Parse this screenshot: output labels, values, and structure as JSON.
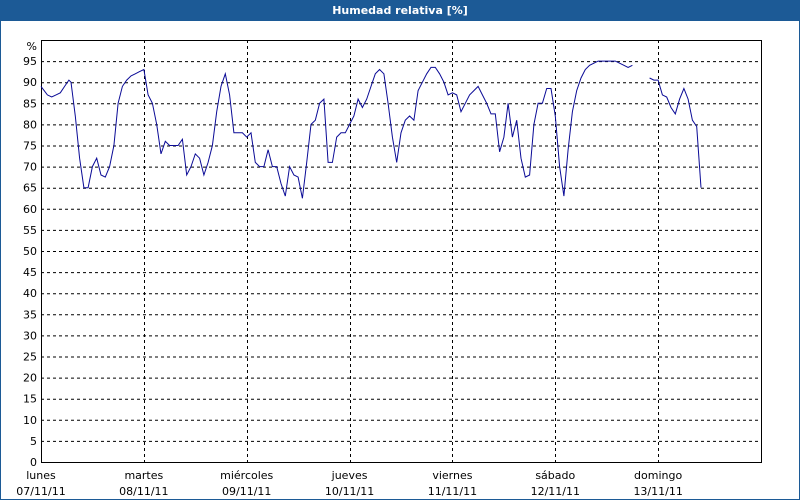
{
  "window": {
    "title": "Humedad relativa [%]"
  },
  "colors": {
    "title_bar": "#1c5a96",
    "line": "#0a0a96",
    "grid": "#000000"
  },
  "chart_data": {
    "type": "line",
    "title": "Humedad relativa [%]",
    "ylabel": "%",
    "ylim": [
      0,
      100
    ],
    "yticks": [
      0,
      5,
      10,
      15,
      20,
      25,
      30,
      35,
      40,
      45,
      50,
      55,
      60,
      65,
      70,
      75,
      80,
      85,
      90,
      95
    ],
    "grid": true,
    "x_unit": "hours since lunes 07/11/11 00:00",
    "xlim": [
      0,
      168
    ],
    "days": [
      {
        "name": "lunes",
        "date": "07/11/11"
      },
      {
        "name": "martes",
        "date": "08/11/11"
      },
      {
        "name": "miércoles",
        "date": "09/11/11"
      },
      {
        "name": "jueves",
        "date": "10/11/11"
      },
      {
        "name": "viernes",
        "date": "11/11/11"
      },
      {
        "name": "sábado",
        "date": "12/11/11"
      },
      {
        "name": "domingo",
        "date": "13/11/11"
      }
    ],
    "series": [
      {
        "values": [
          [
            0,
            89
          ],
          [
            1.5,
            87
          ],
          [
            2.5,
            86.5
          ],
          [
            3.5,
            87
          ],
          [
            4.5,
            87.5
          ],
          [
            5.5,
            89
          ],
          [
            6.5,
            90.5
          ],
          [
            7,
            90
          ],
          [
            8,
            82
          ],
          [
            9,
            72
          ],
          [
            10,
            65
          ],
          [
            11,
            65
          ],
          [
            12,
            70
          ],
          [
            13,
            72
          ],
          [
            14,
            68
          ],
          [
            15,
            67.5
          ],
          [
            16,
            70
          ],
          [
            17,
            75
          ],
          [
            18,
            85
          ],
          [
            19,
            89
          ],
          [
            20,
            90.5
          ],
          [
            21,
            91.5
          ],
          [
            22,
            92
          ],
          [
            23,
            92.5
          ],
          [
            24,
            93
          ],
          [
            25,
            87
          ],
          [
            26,
            85
          ],
          [
            27,
            80
          ],
          [
            28,
            73
          ],
          [
            29,
            76
          ],
          [
            30,
            75
          ],
          [
            31,
            75
          ],
          [
            32,
            75
          ],
          [
            33,
            76.5
          ],
          [
            34,
            68
          ],
          [
            35,
            70
          ],
          [
            36,
            73
          ],
          [
            37,
            72
          ],
          [
            38,
            68
          ],
          [
            39,
            71
          ],
          [
            40,
            75
          ],
          [
            41,
            83
          ],
          [
            42,
            89
          ],
          [
            43,
            92
          ],
          [
            44,
            87
          ],
          [
            45,
            78
          ],
          [
            46,
            78
          ],
          [
            47,
            78
          ],
          [
            48,
            77
          ],
          [
            49,
            78
          ],
          [
            50,
            71
          ],
          [
            51,
            70
          ],
          [
            52,
            70
          ],
          [
            53,
            74
          ],
          [
            54,
            70
          ],
          [
            55,
            70
          ],
          [
            56,
            66
          ],
          [
            57,
            63
          ],
          [
            58,
            70
          ],
          [
            59,
            68
          ],
          [
            60,
            67.5
          ],
          [
            61,
            62.5
          ],
          [
            62,
            71
          ],
          [
            63,
            80
          ],
          [
            64,
            81
          ],
          [
            65,
            85
          ],
          [
            66,
            86
          ],
          [
            67,
            71
          ],
          [
            68,
            71
          ],
          [
            69,
            77
          ],
          [
            70,
            78
          ],
          [
            71,
            78
          ],
          [
            72,
            80
          ],
          [
            73,
            82
          ],
          [
            74,
            86
          ],
          [
            75,
            84
          ],
          [
            76,
            86
          ],
          [
            77,
            89
          ],
          [
            78,
            92
          ],
          [
            79,
            93
          ],
          [
            80,
            92
          ],
          [
            81,
            85
          ],
          [
            82,
            77
          ],
          [
            83,
            71
          ],
          [
            84,
            78
          ],
          [
            85,
            81
          ],
          [
            86,
            82
          ],
          [
            87,
            81
          ],
          [
            88,
            88
          ],
          [
            89,
            90
          ],
          [
            90,
            92
          ],
          [
            91,
            93.5
          ],
          [
            92,
            93.5
          ],
          [
            93,
            92
          ],
          [
            94,
            90
          ],
          [
            95,
            87
          ],
          [
            96,
            87.5
          ],
          [
            97,
            87
          ],
          [
            98,
            83
          ],
          [
            99,
            85
          ],
          [
            100,
            87
          ],
          [
            101,
            88
          ],
          [
            102,
            89
          ],
          [
            103,
            87
          ],
          [
            104,
            85
          ],
          [
            105,
            82.5
          ],
          [
            106,
            82.5
          ],
          [
            107,
            73.5
          ],
          [
            108,
            77
          ],
          [
            109,
            85
          ],
          [
            110,
            77
          ],
          [
            111,
            81
          ],
          [
            112,
            72
          ],
          [
            113,
            67.5
          ],
          [
            114,
            68
          ],
          [
            115,
            80
          ],
          [
            116,
            85
          ],
          [
            117,
            85
          ],
          [
            118,
            88.5
          ],
          [
            119,
            88.5
          ],
          [
            120,
            82
          ],
          [
            121,
            70
          ],
          [
            122,
            63
          ],
          [
            123,
            74
          ],
          [
            124,
            83
          ],
          [
            125,
            88
          ],
          [
            126,
            91
          ],
          [
            127,
            93
          ],
          [
            128,
            94
          ],
          [
            129,
            94.5
          ],
          [
            130,
            95
          ],
          [
            131,
            95
          ],
          [
            132,
            95
          ],
          [
            133,
            95
          ],
          [
            134,
            95
          ],
          [
            135,
            94.5
          ],
          [
            136,
            94
          ],
          [
            137,
            93.5
          ],
          [
            138,
            94
          ]
        ]
      },
      {
        "values": [
          [
            142,
            91
          ],
          [
            143,
            90.5
          ],
          [
            144,
            90.5
          ],
          [
            145,
            87
          ],
          [
            146,
            86.5
          ],
          [
            147,
            84
          ],
          [
            148,
            82.5
          ],
          [
            149,
            86
          ],
          [
            150,
            88.5
          ],
          [
            151,
            86
          ],
          [
            152,
            81
          ],
          [
            153,
            79.5
          ],
          [
            154,
            65
          ]
        ]
      }
    ]
  }
}
